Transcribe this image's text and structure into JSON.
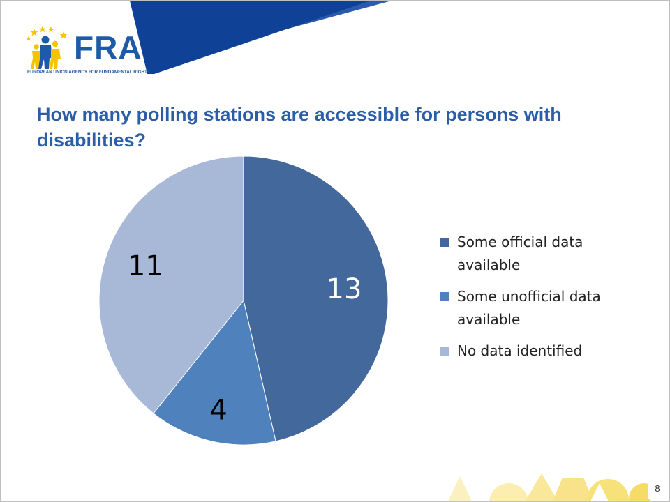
{
  "logo": {
    "name": "FRA",
    "tagline": "EUROPEAN UNION AGENCY FOR FUNDAMENTAL RIGHTS"
  },
  "slide": {
    "title": "How many polling stations are accessible for persons with disabilities?",
    "page_number": "8"
  },
  "colors": {
    "brand_blue": "#1d4d9b",
    "title_blue": "#2b5ea7",
    "accent_yellow": "#f7e27a"
  },
  "chart_data": {
    "type": "pie",
    "title": "",
    "start_angle_deg": 0,
    "direction": "clockwise",
    "legend_position": "right",
    "slices": [
      {
        "label": "Some official data available",
        "value": 13,
        "color": "#43699c",
        "label_color": "#ffffff"
      },
      {
        "label": "Some unofficial data available",
        "value": 4,
        "color": "#4f81bd",
        "label_color": "#000000"
      },
      {
        "label": "No data identified",
        "value": 11,
        "color": "#a8b8d7",
        "label_color": "#000000"
      }
    ]
  }
}
